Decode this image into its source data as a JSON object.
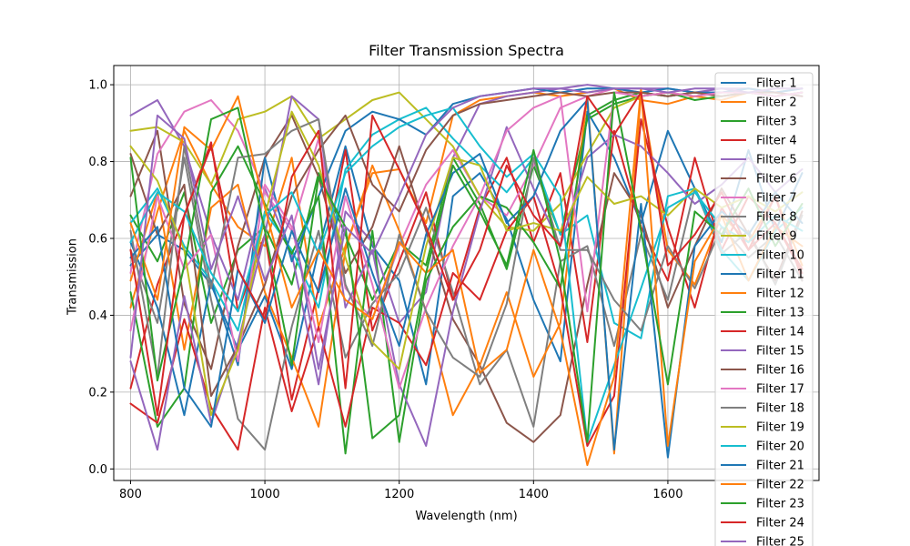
{
  "chart_data": {
    "type": "line",
    "title": "Filter Transmission Spectra",
    "xlabel": "Wavelength (nm)",
    "ylabel": "Transmission",
    "xlim": [
      775,
      1825
    ],
    "ylim": [
      -0.03,
      1.05
    ],
    "xticks": [
      "800",
      "1000",
      "1200",
      "1400",
      "1600"
    ],
    "xtick_values": [
      800,
      1000,
      1200,
      1400,
      1600
    ],
    "yticks": [
      "0.0",
      "0.2",
      "0.4",
      "0.6",
      "0.8",
      "1.0"
    ],
    "ytick_values": [
      0.0,
      0.2,
      0.4,
      0.6,
      0.8,
      1.0
    ],
    "grid": true,
    "legend_position": "upper right",
    "x": [
      800,
      840,
      880,
      920,
      960,
      1000,
      1040,
      1080,
      1120,
      1160,
      1200,
      1240,
      1280,
      1320,
      1360,
      1400,
      1440,
      1480,
      1520,
      1560,
      1600,
      1640,
      1680,
      1720,
      1760,
      1800
    ],
    "series": [
      {
        "name": "Filter 1",
        "color": "#1f77b4",
        "values": [
          0.53,
          0.61,
          0.57,
          0.48,
          0.31,
          0.45,
          0.26,
          0.57,
          0.84,
          0.58,
          0.49,
          0.22,
          0.71,
          0.77,
          0.65,
          0.44,
          0.28,
          0.93,
          0.81,
          0.64,
          0.88,
          0.73,
          0.59,
          0.83,
          0.62,
          0.77
        ]
      },
      {
        "name": "Filter 2",
        "color": "#ff7f0e",
        "values": [
          0.42,
          0.67,
          0.88,
          0.74,
          0.63,
          0.58,
          0.81,
          0.37,
          0.58,
          0.77,
          0.78,
          0.64,
          0.92,
          0.96,
          0.97,
          0.98,
          0.97,
          0.98,
          0.99,
          0.96,
          0.95,
          0.97,
          0.96,
          0.98,
          0.97,
          0.98
        ]
      },
      {
        "name": "Filter 3",
        "color": "#2ca02c",
        "values": [
          0.66,
          0.54,
          0.72,
          0.38,
          0.57,
          0.63,
          0.48,
          0.77,
          0.61,
          0.44,
          0.59,
          0.53,
          0.81,
          0.69,
          0.52,
          0.79,
          0.61,
          0.91,
          0.95,
          0.97,
          0.98,
          0.96,
          0.97,
          0.98,
          0.97,
          0.98
        ]
      },
      {
        "name": "Filter 4",
        "color": "#d62728",
        "values": [
          0.21,
          0.48,
          0.66,
          0.85,
          0.41,
          0.61,
          0.18,
          0.47,
          0.83,
          0.36,
          0.54,
          0.72,
          0.44,
          0.68,
          0.81,
          0.59,
          0.77,
          0.33,
          0.88,
          0.63,
          0.49,
          0.81,
          0.57,
          0.71,
          0.64,
          0.52
        ]
      },
      {
        "name": "Filter 5",
        "color": "#9467bd",
        "values": [
          0.92,
          0.96,
          0.84,
          0.61,
          0.44,
          0.73,
          0.56,
          0.22,
          0.67,
          0.59,
          0.38,
          0.46,
          0.81,
          0.95,
          0.97,
          0.98,
          0.99,
          1.0,
          0.99,
          0.99,
          0.99,
          0.98,
          0.99,
          0.99,
          0.98,
          0.99
        ]
      },
      {
        "name": "Filter 6",
        "color": "#8c564b",
        "values": [
          0.71,
          0.88,
          0.43,
          0.26,
          0.58,
          0.81,
          0.92,
          0.76,
          0.51,
          0.63,
          0.84,
          0.62,
          0.39,
          0.27,
          0.12,
          0.07,
          0.14,
          0.48,
          0.77,
          0.66,
          0.42,
          0.58,
          0.73,
          0.61,
          0.49,
          0.67
        ]
      },
      {
        "name": "Filter 7",
        "color": "#e377c2",
        "values": [
          0.51,
          0.82,
          0.93,
          0.96,
          0.88,
          0.72,
          0.62,
          0.86,
          0.47,
          0.39,
          0.58,
          0.74,
          0.83,
          0.71,
          0.66,
          0.79,
          0.94,
          0.97,
          0.99,
          0.98,
          0.97,
          0.98,
          0.98,
          0.99,
          0.98,
          0.97
        ]
      },
      {
        "name": "Filter 8",
        "color": "#7f7f7f",
        "values": [
          0.57,
          0.38,
          0.81,
          0.44,
          0.13,
          0.05,
          0.37,
          0.62,
          0.29,
          0.43,
          0.51,
          0.68,
          0.46,
          0.22,
          0.31,
          0.11,
          0.54,
          0.58,
          0.32,
          0.61,
          0.44,
          0.73,
          0.56,
          0.62,
          0.48,
          0.66
        ]
      },
      {
        "name": "Filter 9",
        "color": "#bcbd22",
        "values": [
          0.88,
          0.89,
          0.85,
          0.74,
          0.91,
          0.93,
          0.97,
          0.86,
          0.91,
          0.96,
          0.98,
          0.91,
          0.84,
          0.71,
          0.63,
          0.62,
          0.69,
          0.82,
          0.94,
          0.97,
          0.98,
          0.97,
          0.98,
          0.98,
          0.97,
          0.98
        ]
      },
      {
        "name": "Filter 10",
        "color": "#17becf",
        "values": [
          0.64,
          0.73,
          0.58,
          0.49,
          0.36,
          0.67,
          0.57,
          0.42,
          0.78,
          0.87,
          0.91,
          0.94,
          0.86,
          0.79,
          0.72,
          0.81,
          0.61,
          0.66,
          0.38,
          0.34,
          0.71,
          0.73,
          0.57,
          0.49,
          0.62,
          0.68
        ]
      },
      {
        "name": "Filter 11",
        "color": "#1f77b4",
        "values": [
          0.59,
          0.42,
          0.14,
          0.49,
          0.27,
          0.81,
          0.54,
          0.71,
          0.88,
          0.93,
          0.91,
          0.87,
          0.95,
          0.97,
          0.98,
          0.99,
          0.98,
          0.99,
          0.99,
          0.98,
          0.99,
          0.98,
          0.98,
          0.99,
          0.98,
          0.99
        ]
      },
      {
        "name": "Filter 12",
        "color": "#ff7f0e",
        "values": [
          0.49,
          0.72,
          0.31,
          0.68,
          0.74,
          0.46,
          0.29,
          0.11,
          0.57,
          0.79,
          0.62,
          0.41,
          0.14,
          0.27,
          0.46,
          0.24,
          0.38,
          0.97,
          0.04,
          0.98,
          0.57,
          0.48,
          0.66,
          0.59,
          0.71,
          0.53
        ]
      },
      {
        "name": "Filter 13",
        "color": "#2ca02c",
        "values": [
          0.46,
          0.11,
          0.21,
          0.72,
          0.84,
          0.69,
          0.56,
          0.71,
          0.04,
          0.62,
          0.07,
          0.49,
          0.63,
          0.71,
          0.68,
          0.59,
          0.47,
          0.92,
          0.96,
          0.98,
          0.97,
          0.98,
          0.97,
          0.98,
          0.97,
          0.98
        ]
      },
      {
        "name": "Filter 14",
        "color": "#d62728",
        "values": [
          0.17,
          0.12,
          0.39,
          0.16,
          0.05,
          0.42,
          0.15,
          0.37,
          0.11,
          0.42,
          0.38,
          0.27,
          0.51,
          0.44,
          0.62,
          0.71,
          0.47,
          0.06,
          0.19,
          0.91,
          0.63,
          0.42,
          0.68,
          0.57,
          0.71,
          0.49
        ]
      },
      {
        "name": "Filter 15",
        "color": "#9467bd",
        "values": [
          0.28,
          0.05,
          0.45,
          0.12,
          0.33,
          0.61,
          0.97,
          0.91,
          0.42,
          0.57,
          0.22,
          0.06,
          0.41,
          0.67,
          0.89,
          0.73,
          0.58,
          0.81,
          0.87,
          0.84,
          0.77,
          0.69,
          0.74,
          0.81,
          0.72,
          0.78
        ]
      },
      {
        "name": "Filter 16",
        "color": "#8c564b",
        "values": [
          0.82,
          0.61,
          0.74,
          0.19,
          0.32,
          0.48,
          0.71,
          0.83,
          0.92,
          0.74,
          0.67,
          0.83,
          0.92,
          0.95,
          0.96,
          0.97,
          0.98,
          0.97,
          0.98,
          0.98,
          0.97,
          0.98,
          0.97,
          0.98,
          0.98,
          0.97
        ]
      },
      {
        "name": "Filter 17",
        "color": "#e377c2",
        "values": [
          0.36,
          0.71,
          0.52,
          0.61,
          0.28,
          0.74,
          0.63,
          0.33,
          0.71,
          0.48,
          0.21,
          0.42,
          0.58,
          0.71,
          0.88,
          0.94,
          0.97,
          0.41,
          0.98,
          0.97,
          0.98,
          0.97,
          0.98,
          0.98,
          0.97,
          0.98
        ]
      },
      {
        "name": "Filter 18",
        "color": "#7f7f7f",
        "values": [
          0.62,
          0.24,
          0.84,
          0.47,
          0.81,
          0.82,
          0.88,
          0.91,
          0.48,
          0.32,
          0.61,
          0.41,
          0.29,
          0.24,
          0.43,
          0.81,
          0.57,
          0.57,
          0.44,
          0.36,
          0.58,
          0.47,
          0.63,
          0.55,
          0.61,
          0.49
        ]
      },
      {
        "name": "Filter 19",
        "color": "#bcbd22",
        "values": [
          0.84,
          0.75,
          0.57,
          0.14,
          0.31,
          0.66,
          0.93,
          0.79,
          0.55,
          0.33,
          0.26,
          0.58,
          0.81,
          0.79,
          0.62,
          0.64,
          0.62,
          0.76,
          0.69,
          0.71,
          0.66,
          0.73,
          0.68,
          0.71,
          0.67,
          0.72
        ]
      },
      {
        "name": "Filter 20",
        "color": "#17becf",
        "values": [
          0.59,
          0.72,
          0.67,
          0.51,
          0.41,
          0.66,
          0.72,
          0.56,
          0.77,
          0.84,
          0.89,
          0.92,
          0.94,
          0.84,
          0.76,
          0.82,
          0.71,
          0.07,
          0.27,
          0.47,
          0.68,
          0.72,
          0.63,
          0.59,
          0.66,
          0.62
        ]
      },
      {
        "name": "Filter 21",
        "color": "#1f77b4",
        "values": [
          0.55,
          0.63,
          0.21,
          0.11,
          0.52,
          0.38,
          0.62,
          0.46,
          0.73,
          0.51,
          0.32,
          0.61,
          0.77,
          0.82,
          0.64,
          0.71,
          0.88,
          0.96,
          0.05,
          0.69,
          0.03,
          0.58,
          0.67,
          0.61,
          0.72,
          0.64
        ]
      },
      {
        "name": "Filter 22",
        "color": "#ff7f0e",
        "values": [
          0.64,
          0.44,
          0.89,
          0.83,
          0.97,
          0.68,
          0.42,
          0.57,
          0.44,
          0.39,
          0.59,
          0.51,
          0.57,
          0.25,
          0.31,
          0.57,
          0.36,
          0.01,
          0.24,
          0.99,
          0.06,
          0.54,
          0.66,
          0.49,
          0.63,
          0.58
        ]
      },
      {
        "name": "Filter 23",
        "color": "#2ca02c",
        "values": [
          0.81,
          0.23,
          0.53,
          0.91,
          0.94,
          0.62,
          0.27,
          0.76,
          0.63,
          0.08,
          0.14,
          0.51,
          0.79,
          0.67,
          0.53,
          0.83,
          0.54,
          0.07,
          0.98,
          0.62,
          0.22,
          0.67,
          0.61,
          0.73,
          0.58,
          0.69
        ]
      },
      {
        "name": "Filter 24",
        "color": "#d62728",
        "values": [
          0.57,
          0.14,
          0.66,
          0.84,
          0.52,
          0.39,
          0.76,
          0.88,
          0.21,
          0.92,
          0.78,
          0.63,
          0.44,
          0.57,
          0.79,
          0.66,
          0.58,
          0.97,
          0.87,
          0.98,
          0.53,
          0.61,
          0.72,
          0.57,
          0.64,
          0.51
        ]
      },
      {
        "name": "Filter 25",
        "color": "#9467bd",
        "values": [
          0.29,
          0.92,
          0.86,
          0.52,
          0.71,
          0.49,
          0.66,
          0.26,
          0.63,
          0.56,
          0.71,
          0.87,
          0.94,
          0.97,
          0.98,
          0.99,
          0.99,
          0.98,
          0.99,
          0.99,
          0.98,
          0.99,
          0.99,
          0.98,
          0.99,
          0.99
        ]
      }
    ]
  }
}
